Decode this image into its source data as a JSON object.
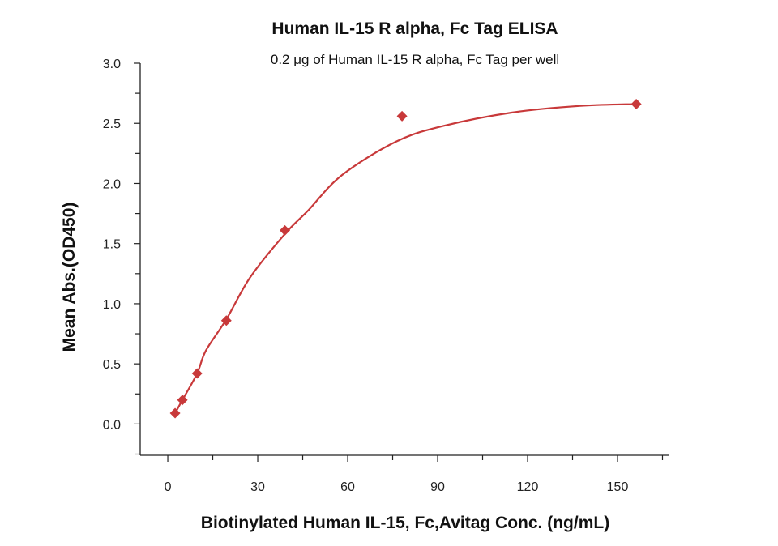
{
  "chart_data": {
    "type": "scatter",
    "title": "Human IL-15 R alpha, Fc Tag ELISA",
    "subtitle": "0.2 μg of Human IL-15 R alpha, Fc Tag per well",
    "xlabel": "Biotinylated Human IL-15, Fc,Avitag Conc. (ng/mL)",
    "ylabel": "Mean Abs.(OD450)",
    "xlim": [
      -9.2,
      167.3
    ],
    "ylim": [
      -0.26,
      3.0
    ],
    "xticks": [
      "0",
      "30",
      "60",
      "90",
      "120",
      "150"
    ],
    "yticks": [
      "0.0",
      "0.5",
      "1.0",
      "1.5",
      "2.0",
      "2.5",
      "3.0"
    ],
    "grid": false,
    "color": "#c8393a",
    "marker": "diamond",
    "points": [
      {
        "x": 2.44,
        "y": 0.09
      },
      {
        "x": 4.88,
        "y": 0.2
      },
      {
        "x": 9.77,
        "y": 0.42
      },
      {
        "x": 19.53,
        "y": 0.86
      },
      {
        "x": 39.06,
        "y": 1.61
      },
      {
        "x": 78.13,
        "y": 2.56
      },
      {
        "x": 156.25,
        "y": 2.66
      }
    ],
    "fit_curve": [
      [
        2.44,
        0.09
      ],
      [
        4.88,
        0.2
      ],
      [
        9.77,
        0.42
      ],
      [
        12.7,
        0.61
      ],
      [
        19.53,
        0.87
      ],
      [
        27.5,
        1.22
      ],
      [
        39.06,
        1.58
      ],
      [
        46.8,
        1.775
      ],
      [
        58.1,
        2.07
      ],
      [
        76.3,
        2.35
      ],
      [
        92.2,
        2.48
      ],
      [
        114.9,
        2.59
      ],
      [
        137.6,
        2.645
      ],
      [
        156.25,
        2.66
      ]
    ]
  }
}
